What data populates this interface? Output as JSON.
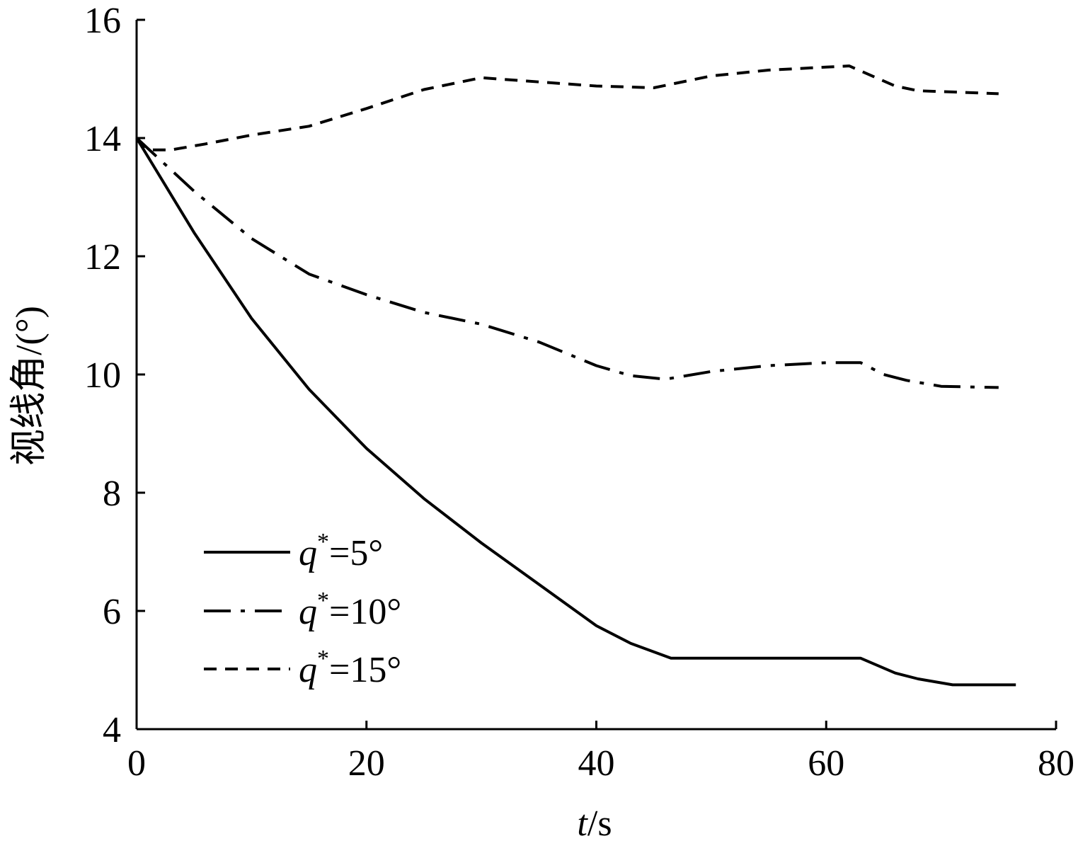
{
  "chart_data": {
    "type": "line",
    "title": "",
    "xlabel": {
      "var": "t",
      "unit": "/s"
    },
    "ylabel": "视线角/(°)",
    "xlim": [
      0,
      80
    ],
    "ylim": [
      4,
      16
    ],
    "xticks": [
      0,
      20,
      40,
      60,
      80
    ],
    "yticks": [
      4,
      6,
      8,
      10,
      12,
      14,
      16
    ],
    "xtick_labels": [
      "0",
      "20",
      "40",
      "60",
      "80"
    ],
    "ytick_labels": [
      "4",
      "6",
      "8",
      "10",
      "12",
      "14",
      "16"
    ],
    "grid": false,
    "legend_position": "bottom-left",
    "series": [
      {
        "name": "q*=5°",
        "label": {
          "var": "q",
          "sup": "*",
          "rest": "=5°"
        },
        "style": "solid",
        "x": [
          0,
          5,
          10,
          15,
          20,
          25,
          30,
          35,
          40,
          43,
          46.5,
          53,
          63,
          66,
          68,
          71,
          76.5
        ],
        "y": [
          14,
          12.4,
          10.95,
          9.75,
          8.75,
          7.9,
          7.15,
          6.45,
          5.75,
          5.45,
          5.2,
          5.2,
          5.2,
          4.95,
          4.85,
          4.75,
          4.75
        ]
      },
      {
        "name": "q*=10°",
        "label": {
          "var": "q",
          "sup": "*",
          "rest": "=10°"
        },
        "style": "dashdot",
        "x": [
          0,
          5,
          10,
          15,
          20,
          25,
          30,
          35,
          40,
          43,
          46,
          50,
          55,
          60,
          63,
          65,
          67,
          70,
          75
        ],
        "y": [
          14,
          13.1,
          12.3,
          11.7,
          11.35,
          11.05,
          10.85,
          10.55,
          10.15,
          9.98,
          9.92,
          10.05,
          10.15,
          10.2,
          10.2,
          10.0,
          9.9,
          9.8,
          9.78
        ]
      },
      {
        "name": "q*=15°",
        "label": {
          "var": "q",
          "sup": "*",
          "rest": "=15°"
        },
        "style": "dashed",
        "x": [
          0,
          1,
          3,
          6,
          10,
          15,
          20,
          25,
          30,
          35,
          40,
          45,
          50,
          55,
          60,
          62,
          64,
          66,
          68,
          71,
          75
        ],
        "y": [
          14,
          13.8,
          13.8,
          13.9,
          14.05,
          14.2,
          14.5,
          14.82,
          15.02,
          14.95,
          14.88,
          14.85,
          15.05,
          15.15,
          15.2,
          15.22,
          15.05,
          14.88,
          14.8,
          14.78,
          14.75
        ]
      }
    ]
  }
}
